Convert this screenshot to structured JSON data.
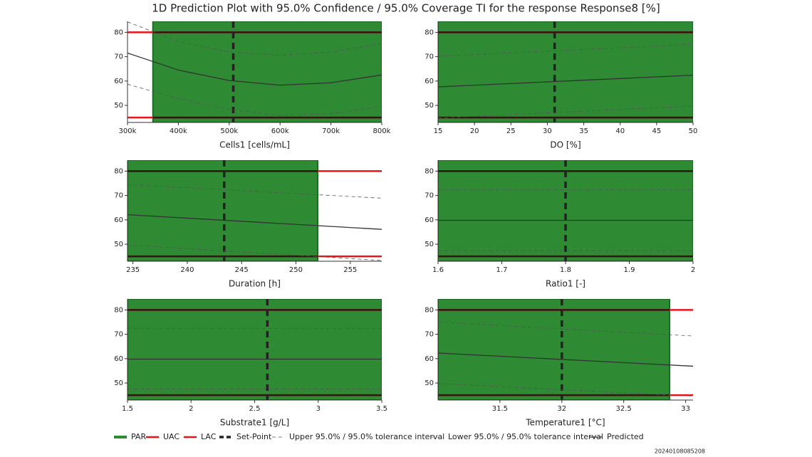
{
  "title": "1D Prediction Plot with 95.0% Confidence / 95.0% Coverage TI for the response Response8 [%]",
  "timestamp": "20240108085208",
  "legend": [
    {
      "name": "PAR",
      "color": "#2e8b34"
    },
    {
      "name": "UAC",
      "color": "#e8141b"
    },
    {
      "name": "LAC",
      "color": "#e8141b"
    },
    {
      "name": "Set-Point",
      "color": "#222222"
    },
    {
      "name": "Upper 95.0% / 95.0% tolerance interval",
      "color": "#555555"
    },
    {
      "name": "Lower 95.0% / 95.0% tolerance interval",
      "color": "#555555"
    },
    {
      "name": "Predicted",
      "color": "#333333"
    }
  ],
  "chart_data": [
    {
      "type": "line",
      "x_label": "Cells1 [cells/mL]",
      "xlim": [
        300000,
        800000
      ],
      "xticks": [
        {
          "value": 300000,
          "label": "300k"
        },
        {
          "value": 400000,
          "label": "400k"
        },
        {
          "value": 500000,
          "label": "500k"
        },
        {
          "value": 600000,
          "label": "600k"
        },
        {
          "value": 700000,
          "label": "700k"
        },
        {
          "value": 800000,
          "label": "800k"
        }
      ],
      "ylim": [
        43,
        84.5
      ],
      "yticks": [
        50,
        60,
        70,
        80
      ],
      "par": [
        350000,
        800000
      ],
      "uac": 80,
      "lac": 45,
      "set_point": 508000,
      "x": [
        300000,
        400000,
        500000,
        600000,
        700000,
        800000
      ],
      "predicted": [
        71.5,
        64.5,
        60.2,
        58.3,
        59.3,
        62.5
      ],
      "upper": [
        84.3,
        76.2,
        72.0,
        70.6,
        71.8,
        75.5
      ],
      "lower": [
        58.7,
        52.8,
        48.3,
        45.9,
        46.6,
        49.6
      ]
    },
    {
      "type": "line",
      "x_label": "DO [%]",
      "xlim": [
        15,
        50
      ],
      "xticks": [
        15,
        20,
        25,
        30,
        35,
        40,
        45,
        50
      ],
      "ylim": [
        43,
        84.5
      ],
      "yticks": [
        50,
        60,
        70,
        80
      ],
      "par": [
        15,
        50
      ],
      "uac": 80,
      "lac": 45,
      "set_point": 31,
      "x": [
        15,
        32.5,
        50
      ],
      "predicted": [
        57.6,
        60.0,
        62.4
      ],
      "upper": [
        70.2,
        72.6,
        75.1
      ],
      "lower": [
        44.8,
        47.3,
        49.7
      ]
    },
    {
      "type": "line",
      "x_label": "Duration [h]",
      "xlim": [
        234.5,
        257.9
      ],
      "xticks": [
        235,
        240,
        245,
        250,
        255
      ],
      "ylim": [
        43,
        84.5
      ],
      "yticks": [
        50,
        60,
        70,
        80
      ],
      "par": [
        234.5,
        252
      ],
      "uac": 80,
      "lac": 45,
      "set_point": 243.4,
      "x": [
        234.5,
        257.9
      ],
      "predicted": [
        62.1,
        56.1
      ],
      "upper": [
        74.5,
        68.9
      ],
      "lower": [
        49.7,
        43.3
      ]
    },
    {
      "type": "line",
      "x_label": "Ratio1 [-]",
      "xlim": [
        1.6,
        2
      ],
      "xticks": [
        1.6,
        1.7,
        1.8,
        1.9,
        2
      ],
      "ylim": [
        43,
        84.5
      ],
      "yticks": [
        50,
        60,
        70,
        80
      ],
      "par": [
        1.6,
        2
      ],
      "uac": 80,
      "lac": 45,
      "set_point": 1.8,
      "x": [
        1.6,
        2
      ],
      "predicted": [
        59.8,
        59.8
      ],
      "upper": [
        72.3,
        72.3
      ],
      "lower": [
        47.4,
        47.4
      ]
    },
    {
      "type": "line",
      "x_label": "Substrate1 [g/L]",
      "xlim": [
        1.5,
        3.5
      ],
      "xticks": [
        1.5,
        2,
        2.5,
        3,
        3.5
      ],
      "ylim": [
        43,
        84.5
      ],
      "yticks": [
        50,
        60,
        70,
        80
      ],
      "par": [
        1.5,
        3.5
      ],
      "uac": 80,
      "lac": 45,
      "set_point": 2.6,
      "x": [
        1.5,
        3.5
      ],
      "predicted": [
        59.8,
        59.8
      ],
      "upper": [
        72.4,
        72.4
      ],
      "lower": [
        47.5,
        47.5
      ]
    },
    {
      "type": "line",
      "x_label": "Temperature1 [°C]",
      "xlim": [
        31.0,
        33.06
      ],
      "xticks": [
        31.5,
        32,
        32.5,
        33
      ],
      "ylim": [
        43,
        84.5
      ],
      "yticks": [
        50,
        60,
        70,
        80
      ],
      "par": [
        31.0,
        32.87
      ],
      "uac": 80,
      "lac": 45,
      "set_point": 32,
      "x": [
        31.0,
        33.06
      ],
      "predicted": [
        62.3,
        56.9
      ],
      "upper": [
        75.0,
        69.3
      ],
      "lower": [
        49.8,
        44.6
      ]
    }
  ]
}
